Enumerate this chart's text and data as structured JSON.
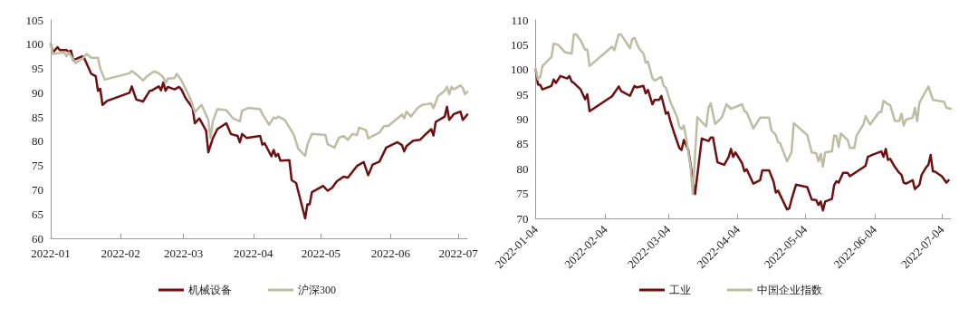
{
  "chart_data": [
    {
      "type": "line",
      "xlim": [
        "2022-01-01",
        "2022-07-05"
      ],
      "xticks": [
        "2022-01",
        "2022-02",
        "2022-03",
        "2022-04",
        "2022-05",
        "2022-06",
        "2022-07"
      ],
      "ylim": [
        60,
        105
      ],
      "yticks": [
        60,
        65,
        70,
        75,
        80,
        85,
        90,
        95,
        100,
        105
      ],
      "grid": false,
      "legend": "bottom",
      "marker": "none",
      "line_style": "solid",
      "series": [
        {
          "name": "机械设备",
          "color": "#6e0f12",
          "x": [
            "2022-01-01",
            "2022-01-02",
            "2022-01-04",
            "2022-01-05",
            "2022-01-08",
            "2022-01-09",
            "2022-01-10",
            "2022-01-11",
            "2022-01-15",
            "2022-01-16",
            "2022-01-19",
            "2022-01-21",
            "2022-01-22",
            "2022-01-23",
            "2022-01-24",
            "2022-01-26",
            "2022-02-05",
            "2022-02-06",
            "2022-02-08",
            "2022-02-11",
            "2022-02-14",
            "2022-02-15",
            "2022-02-18",
            "2022-02-19",
            "2022-02-20",
            "2022-02-21",
            "2022-02-22",
            "2022-02-25",
            "2022-02-27",
            "2022-02-28",
            "2022-03-02",
            "2022-03-05",
            "2022-03-06",
            "2022-03-08",
            "2022-03-11",
            "2022-03-12",
            "2022-03-14",
            "2022-03-16",
            "2022-03-20",
            "2022-03-22",
            "2022-03-25",
            "2022-03-26",
            "2022-03-27",
            "2022-03-29",
            "2022-04-04",
            "2022-04-05",
            "2022-04-06",
            "2022-04-09",
            "2022-04-10",
            "2022-04-11",
            "2022-04-12",
            "2022-04-13",
            "2022-04-17",
            "2022-04-18",
            "2022-04-20",
            "2022-04-24",
            "2022-04-25",
            "2022-04-26",
            "2022-04-27",
            "2022-05-02",
            "2022-05-04",
            "2022-05-06",
            "2022-05-08",
            "2022-05-11",
            "2022-05-13",
            "2022-05-17",
            "2022-05-20",
            "2022-05-22",
            "2022-05-24",
            "2022-05-27",
            "2022-05-30",
            "2022-06-04",
            "2022-06-06",
            "2022-06-07",
            "2022-06-08",
            "2022-06-11",
            "2022-06-14",
            "2022-06-16",
            "2022-06-19",
            "2022-06-20",
            "2022-06-21",
            "2022-06-25",
            "2022-06-26",
            "2022-06-27",
            "2022-06-29",
            "2022-07-02",
            "2022-07-03",
            "2022-07-05"
          ],
          "values": [
            100,
            98.3,
            99.4,
            98.8,
            98.8,
            98.4,
            98.7,
            96.7,
            97.5,
            97,
            93.9,
            93.4,
            90.4,
            90.8,
            87.5,
            88.3,
            90,
            91.3,
            88.6,
            88.2,
            90.4,
            90.5,
            91.3,
            90.5,
            92.1,
            90.4,
            91.2,
            90.7,
            91.2,
            90.7,
            88.8,
            86.9,
            83.7,
            84.7,
            82.2,
            77.7,
            80.6,
            82.5,
            83.7,
            81.5,
            81.1,
            79.8,
            81.5,
            80.7,
            81.1,
            79.3,
            79.6,
            76.9,
            78.2,
            76.9,
            77.4,
            76,
            76.1,
            72,
            71.4,
            64.1,
            67,
            67,
            69.5,
            70.8,
            69.8,
            70.4,
            71.7,
            72.7,
            72.5,
            74.9,
            75.7,
            73,
            75.2,
            75.8,
            78.7,
            79.8,
            79.2,
            77.9,
            79,
            80.1,
            80.3,
            81.2,
            82.5,
            81.2,
            84,
            85.1,
            87.1,
            84.4,
            85.6,
            86.1,
            84.4,
            85.5
          ]
        },
        {
          "name": "沪深300",
          "color": "#bdbda6",
          "x": [
            "2022-01-01",
            "2022-01-02",
            "2022-01-07",
            "2022-01-08",
            "2022-01-09",
            "2022-01-12",
            "2022-01-15",
            "2022-01-17",
            "2022-01-19",
            "2022-01-22",
            "2022-01-23",
            "2022-01-25",
            "2022-02-05",
            "2022-02-06",
            "2022-02-09",
            "2022-02-11",
            "2022-02-13",
            "2022-02-16",
            "2022-02-18",
            "2022-02-20",
            "2022-02-21",
            "2022-02-22",
            "2022-02-25",
            "2022-02-26",
            "2022-02-28",
            "2022-03-04",
            "2022-03-06",
            "2022-03-09",
            "2022-03-12",
            "2022-03-13",
            "2022-03-14",
            "2022-03-16",
            "2022-03-20",
            "2022-03-23",
            "2022-03-26",
            "2022-03-27",
            "2022-03-30",
            "2022-04-04",
            "2022-04-05",
            "2022-04-08",
            "2022-04-10",
            "2022-04-11",
            "2022-04-12",
            "2022-04-15",
            "2022-04-19",
            "2022-04-21",
            "2022-04-24",
            "2022-04-25",
            "2022-04-27",
            "2022-05-03",
            "2022-05-04",
            "2022-05-07",
            "2022-05-09",
            "2022-05-11",
            "2022-05-13",
            "2022-05-15",
            "2022-05-17",
            "2022-05-18",
            "2022-05-21",
            "2022-05-22",
            "2022-05-27",
            "2022-05-29",
            "2022-05-31",
            "2022-06-06",
            "2022-06-07",
            "2022-06-08",
            "2022-06-10",
            "2022-06-13",
            "2022-06-15",
            "2022-06-19",
            "2022-06-20",
            "2022-06-22",
            "2022-06-25",
            "2022-06-26",
            "2022-06-27",
            "2022-06-28",
            "2022-06-29",
            "2022-07-02",
            "2022-07-03",
            "2022-07-04",
            "2022-07-05"
          ],
          "values": [
            100,
            98,
            98.3,
            97.5,
            98.3,
            96.1,
            97,
            98,
            97.2,
            97.2,
            95,
            92.7,
            94,
            94.5,
            93.4,
            92.5,
            93.5,
            94.4,
            94,
            93.2,
            92,
            92.9,
            93,
            93.9,
            92.6,
            88.8,
            86,
            87.5,
            84.4,
            80.6,
            84.1,
            86.6,
            86.4,
            84.7,
            84.1,
            86.3,
            86.9,
            86.6,
            85.6,
            83.4,
            84.9,
            84.7,
            85.1,
            84.4,
            81.3,
            78.4,
            77,
            79.3,
            81.5,
            81.3,
            79.4,
            78.7,
            80.7,
            81.1,
            80.3,
            81.5,
            81.3,
            82.8,
            82.3,
            80.6,
            81.8,
            83.1,
            83.2,
            85.5,
            84.7,
            86.1,
            85.1,
            86.9,
            87.5,
            87.8,
            86.8,
            89.3,
            90.4,
            91.2,
            89.7,
            91.2,
            90.7,
            91.5,
            91,
            89.7,
            90.2
          ]
        }
      ]
    },
    {
      "type": "line",
      "xlim": [
        "2022-01-04",
        "2022-07-08"
      ],
      "xticks": [
        "2022-01-04",
        "2022-02-04",
        "2022-03-04",
        "2022-04-04",
        "2022-05-04",
        "2022-06-04",
        "2022-07-04"
      ],
      "ylim": [
        70,
        110
      ],
      "yticks": [
        70,
        75,
        80,
        85,
        90,
        95,
        100,
        105,
        110
      ],
      "grid": false,
      "legend": "bottom",
      "marker": "none",
      "line_style": "solid",
      "series": [
        {
          "name": "工业",
          "color": "#6e0f12",
          "x": [
            "2022-01-04",
            "2022-01-05",
            "2022-01-06",
            "2022-01-07",
            "2022-01-11",
            "2022-01-12",
            "2022-01-13",
            "2022-01-15",
            "2022-01-18",
            "2022-01-19",
            "2022-01-20",
            "2022-01-21",
            "2022-01-24",
            "2022-01-26",
            "2022-01-27",
            "2022-01-28",
            "2022-02-07",
            "2022-02-10",
            "2022-02-11",
            "2022-02-15",
            "2022-02-17",
            "2022-02-18",
            "2022-02-21",
            "2022-02-22",
            "2022-02-23",
            "2022-02-25",
            "2022-02-26",
            "2022-02-28",
            "2022-03-01",
            "2022-03-03",
            "2022-03-04",
            "2022-03-05",
            "2022-03-07",
            "2022-03-09",
            "2022-03-10",
            "2022-03-11",
            "2022-03-13",
            "2022-03-16",
            "2022-03-19",
            "2022-03-22",
            "2022-03-23",
            "2022-03-24",
            "2022-03-26",
            "2022-03-29",
            "2022-03-31",
            "2022-04-01",
            "2022-04-02",
            "2022-04-03",
            "2022-04-06",
            "2022-04-07",
            "2022-04-08",
            "2022-04-11",
            "2022-04-14",
            "2022-04-15",
            "2022-04-18",
            "2022-04-20",
            "2022-04-21",
            "2022-04-22",
            "2022-04-26",
            "2022-04-27",
            "2022-04-28",
            "2022-04-30",
            "2022-05-05",
            "2022-05-07",
            "2022-05-09",
            "2022-05-10",
            "2022-05-11",
            "2022-05-12",
            "2022-05-13",
            "2022-05-16",
            "2022-05-17",
            "2022-05-18",
            "2022-05-19",
            "2022-05-21",
            "2022-05-23",
            "2022-05-24",
            "2022-05-31",
            "2022-06-01",
            "2022-06-03",
            "2022-06-07",
            "2022-06-08",
            "2022-06-09",
            "2022-06-10",
            "2022-06-11",
            "2022-06-13",
            "2022-06-15",
            "2022-06-16",
            "2022-06-17",
            "2022-06-18",
            "2022-06-21",
            "2022-06-22",
            "2022-06-24",
            "2022-06-25",
            "2022-06-27",
            "2022-06-28",
            "2022-06-29",
            "2022-06-30",
            "2022-07-01",
            "2022-07-04",
            "2022-07-06",
            "2022-07-07"
          ],
          "values": [
            100,
            97,
            96.9,
            96,
            96.7,
            98,
            97.3,
            98.7,
            98.2,
            98.7,
            97.6,
            97.3,
            96,
            94,
            95,
            91.6,
            94.6,
            96.6,
            95.7,
            94.7,
            96.7,
            96.4,
            96.7,
            95.2,
            95.9,
            93,
            93.9,
            93.9,
            94.7,
            91.1,
            91.4,
            89.6,
            86.8,
            84.2,
            83.8,
            85.8,
            83.8,
            74.9,
            86.1,
            85.6,
            86.3,
            86.3,
            81.3,
            80.8,
            82.4,
            84,
            82.4,
            83.3,
            81.1,
            79.5,
            79.9,
            77,
            77.7,
            79.7,
            79.7,
            77.4,
            75.2,
            75.6,
            71.8,
            72,
            73.8,
            76.8,
            76.3,
            73.8,
            73.7,
            72.7,
            73.4,
            71.6,
            73.4,
            73.9,
            76.7,
            77.5,
            77.2,
            79.2,
            79.2,
            78.5,
            80.6,
            82.4,
            82.8,
            83.5,
            82.4,
            84,
            81.8,
            82,
            80.4,
            79.2,
            78.8,
            77.2,
            77,
            77.7,
            75.9,
            76.8,
            78.8,
            80.3,
            80.8,
            82.8,
            79.5,
            79.4,
            78.5,
            77.2,
            77.7
          ]
        },
        {
          "name": "中国企业指数",
          "color": "#bdbda6",
          "x": [
            "2022-01-04",
            "2022-01-05",
            "2022-01-06",
            "2022-01-07",
            "2022-01-10",
            "2022-01-11",
            "2022-01-12",
            "2022-01-14",
            "2022-01-17",
            "2022-01-20",
            "2022-01-21",
            "2022-01-22",
            "2022-01-24",
            "2022-01-26",
            "2022-01-27",
            "2022-01-28",
            "2022-02-07",
            "2022-02-08",
            "2022-02-10",
            "2022-02-11",
            "2022-02-15",
            "2022-02-16",
            "2022-02-17",
            "2022-02-19",
            "2022-02-21",
            "2022-02-22",
            "2022-02-23",
            "2022-02-25",
            "2022-02-26",
            "2022-03-01",
            "2022-03-02",
            "2022-03-03",
            "2022-03-05",
            "2022-03-08",
            "2022-03-09",
            "2022-03-10",
            "2022-03-11",
            "2022-03-12",
            "2022-03-14",
            "2022-03-15",
            "2022-03-17",
            "2022-03-21",
            "2022-03-22",
            "2022-03-23",
            "2022-03-25",
            "2022-03-28",
            "2022-03-30",
            "2022-04-01",
            "2022-04-06",
            "2022-04-07",
            "2022-04-08",
            "2022-04-11",
            "2022-04-14",
            "2022-04-18",
            "2022-04-19",
            "2022-04-21",
            "2022-04-22",
            "2022-04-23",
            "2022-04-26",
            "2022-04-27",
            "2022-04-28",
            "2022-04-29",
            "2022-05-05",
            "2022-05-07",
            "2022-05-09",
            "2022-05-10",
            "2022-05-11",
            "2022-05-12",
            "2022-05-13",
            "2022-05-16",
            "2022-05-17",
            "2022-05-18",
            "2022-05-19",
            "2022-05-20",
            "2022-05-23",
            "2022-05-24",
            "2022-05-26",
            "2022-05-27",
            "2022-05-30",
            "2022-05-31",
            "2022-06-02",
            "2022-06-06",
            "2022-06-07",
            "2022-06-08",
            "2022-06-10",
            "2022-06-11",
            "2022-06-13",
            "2022-06-15",
            "2022-06-16",
            "2022-06-17",
            "2022-06-18",
            "2022-06-21",
            "2022-06-22",
            "2022-06-23",
            "2022-06-24",
            "2022-06-28",
            "2022-06-30",
            "2022-07-05",
            "2022-07-06",
            "2022-07-08"
          ],
          "values": [
            100.2,
            98,
            98.5,
            100.7,
            102.1,
            102.5,
            105.2,
            105,
            103.5,
            103.2,
            107.1,
            107.1,
            105.9,
            104,
            104,
            100.7,
            104.6,
            103.9,
            107.1,
            107.1,
            104.3,
            106.1,
            106.4,
            104.3,
            103.2,
            101.4,
            101.6,
            98.3,
            97.8,
            98.5,
            96.7,
            96.4,
            93.5,
            90.4,
            88.5,
            88,
            88.7,
            86.3,
            80.4,
            74.9,
            90.4,
            88.5,
            92.3,
            93.2,
            89,
            90.4,
            93,
            92.1,
            93,
            91.6,
            91.4,
            88.1,
            90.3,
            90.3,
            87.8,
            86.8,
            85.4,
            85.1,
            81.5,
            82.4,
            83.3,
            89.2,
            86.8,
            83.3,
            83.1,
            81.5,
            83,
            80.4,
            83.3,
            83.5,
            86.7,
            86.6,
            84.4,
            87.1,
            85.8,
            84.2,
            84.2,
            86.7,
            88.9,
            90.6,
            88.9,
            91.4,
            91.4,
            93.7,
            93,
            92.8,
            89.7,
            89.6,
            91.1,
            88.7,
            89.9,
            90.3,
            92.3,
            89.6,
            93.3,
            96.6,
            93.9,
            93.5,
            92.3,
            92.1
          ]
        }
      ]
    }
  ]
}
